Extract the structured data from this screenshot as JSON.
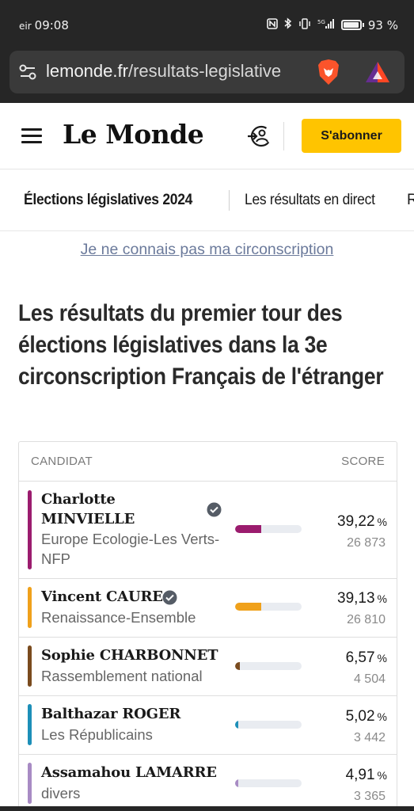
{
  "status": {
    "carrier": "eir",
    "time": "09:08",
    "network": "5G",
    "battery": "93 %"
  },
  "browser": {
    "url_domain": "lemonde.fr",
    "url_path": "/resultats-legislative"
  },
  "header": {
    "logo": "Le Monde",
    "subscribe_label": "S'abonner"
  },
  "tabs": [
    {
      "label": "Élections législatives 2024"
    },
    {
      "label": "Les résultats en direct"
    },
    {
      "label": "R"
    }
  ],
  "circo_link": "Je ne connais pas ma circonscription",
  "title": "Les résultats du premier tour des élections législatives dans la 3e circonscription Français de l'étranger",
  "table": {
    "col_candidate": "CANDIDAT",
    "col_score": "SCORE",
    "rows": [
      {
        "name": "Charlotte MINVIELLE",
        "party": "Europe Ecologie-Les Verts-NFP",
        "pct": "39,22",
        "votes": "26 873",
        "share": 39.22,
        "color": "#9b1c6e",
        "qualified": true
      },
      {
        "name": "Vincent CAURE",
        "party": "Renaissance-Ensemble",
        "pct": "39,13",
        "votes": "26 810",
        "share": 39.13,
        "color": "#f0a11b",
        "qualified": true
      },
      {
        "name": "Sophie CHARBONNET",
        "party": "Rassemblement national",
        "pct": "6,57",
        "votes": "4 504",
        "share": 6.57,
        "color": "#7a4b1e",
        "qualified": false
      },
      {
        "name": "Balthazar ROGER",
        "party": "Les Républicains",
        "pct": "5,02",
        "votes": "3 442",
        "share": 5.02,
        "color": "#1d8fb8",
        "qualified": false
      },
      {
        "name": "Assamahou LAMARRE",
        "party": "divers",
        "pct": "4,91",
        "votes": "3 365",
        "share": 4.91,
        "color": "#a88bc4",
        "qualified": false
      }
    ],
    "pct_unit": "%"
  }
}
